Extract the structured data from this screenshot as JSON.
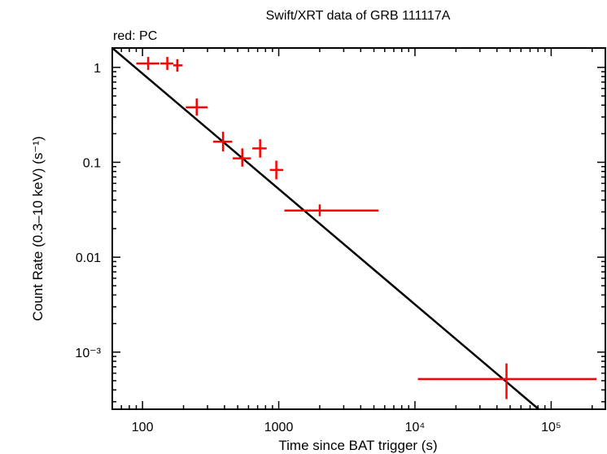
{
  "chart_data": {
    "type": "scatter",
    "title": "Swift/XRT data of GRB 111117A",
    "subtitle": "red: PC",
    "xlabel": "Time since BAT trigger (s)",
    "ylabel": "Count Rate (0.3–10 keV) (s⁻¹)",
    "xscale": "log",
    "yscale": "log",
    "xlim": [
      60,
      250000
    ],
    "ylim": [
      0.00025,
      1.6
    ],
    "x_ticks": [
      {
        "value": 100,
        "label": "100"
      },
      {
        "value": 1000,
        "label": "1000"
      },
      {
        "value": 10000,
        "label": "10⁴"
      },
      {
        "value": 100000,
        "label": "10⁵"
      }
    ],
    "y_ticks": [
      {
        "value": 1,
        "label": "1"
      },
      {
        "value": 0.1,
        "label": "0.1"
      },
      {
        "value": 0.01,
        "label": "0.01"
      },
      {
        "value": 0.001,
        "label": "10⁻³"
      }
    ],
    "series": [
      {
        "color": "#ff0000",
        "points": [
          {
            "x": 110,
            "x_lo": 90,
            "x_hi": 133,
            "y": 1.1,
            "y_lo": 0.94,
            "y_hi": 1.29
          },
          {
            "x": 152,
            "x_lo": 135,
            "x_hi": 168,
            "y": 1.1,
            "y_lo": 0.94,
            "y_hi": 1.29
          },
          {
            "x": 180,
            "x_lo": 168,
            "x_hi": 197,
            "y": 1.05,
            "y_lo": 0.9,
            "y_hi": 1.22
          },
          {
            "x": 250,
            "x_lo": 208,
            "x_hi": 300,
            "y": 0.38,
            "y_lo": 0.31,
            "y_hi": 0.47
          },
          {
            "x": 390,
            "x_lo": 330,
            "x_hi": 455,
            "y": 0.165,
            "y_lo": 0.13,
            "y_hi": 0.21
          },
          {
            "x": 540,
            "x_lo": 460,
            "x_hi": 625,
            "y": 0.11,
            "y_lo": 0.09,
            "y_hi": 0.14
          },
          {
            "x": 730,
            "x_lo": 640,
            "x_hi": 815,
            "y": 0.14,
            "y_lo": 0.112,
            "y_hi": 0.175
          },
          {
            "x": 960,
            "x_lo": 860,
            "x_hi": 1080,
            "y": 0.083,
            "y_lo": 0.066,
            "y_hi": 0.104
          },
          {
            "x": 2000,
            "x_lo": 1100,
            "x_hi": 5400,
            "y": 0.031,
            "y_lo": 0.027,
            "y_hi": 0.036
          },
          {
            "x": 47000,
            "x_lo": 10500,
            "x_hi": 215000,
            "y": 0.00052,
            "y_lo": 0.00032,
            "y_hi": 0.00076
          }
        ]
      }
    ],
    "fit_line": {
      "x": [
        60,
        81000
      ],
      "y": [
        1.6,
        0.00025
      ],
      "color": "#000000"
    }
  }
}
